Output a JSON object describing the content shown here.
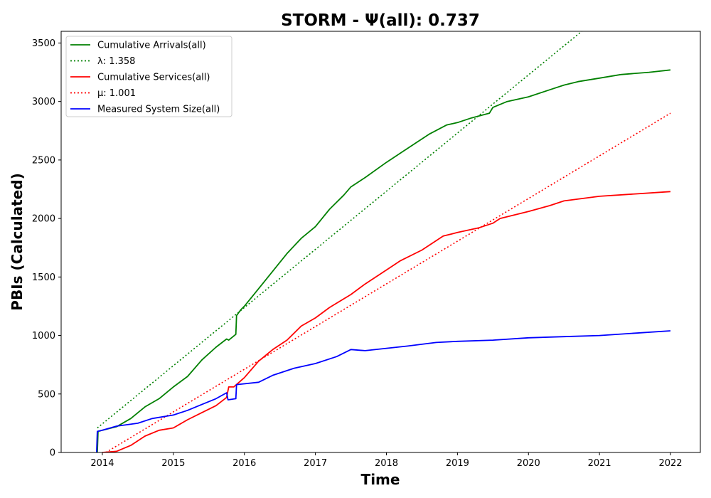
{
  "chart_data": {
    "type": "line",
    "title": "STORM -  Ψ(all): 0.737",
    "xlabel": "Time",
    "ylabel": "PBIs (Calculated)",
    "xlim": [
      2013.42,
      2022.42
    ],
    "ylim": [
      0,
      3600
    ],
    "x_ticks": [
      2014,
      2015,
      2016,
      2017,
      2018,
      2019,
      2020,
      2021,
      2022
    ],
    "y_ticks": [
      0,
      500,
      1000,
      1500,
      2000,
      2500,
      3000,
      3500
    ],
    "grid": false,
    "legend_position": "top-left",
    "series": [
      {
        "name": "Cumulative Arrivals(all)",
        "color": "#008000",
        "style": "solid",
        "points": [
          [
            2013.93,
            0
          ],
          [
            2013.94,
            180
          ],
          [
            2014.0,
            190
          ],
          [
            2014.2,
            220
          ],
          [
            2014.4,
            290
          ],
          [
            2014.6,
            390
          ],
          [
            2014.8,
            460
          ],
          [
            2015.0,
            560
          ],
          [
            2015.2,
            650
          ],
          [
            2015.4,
            790
          ],
          [
            2015.6,
            900
          ],
          [
            2015.75,
            970
          ],
          [
            2015.78,
            960
          ],
          [
            2015.88,
            1010
          ],
          [
            2015.89,
            1170
          ],
          [
            2015.95,
            1220
          ],
          [
            2016.0,
            1250
          ],
          [
            2016.2,
            1400
          ],
          [
            2016.4,
            1550
          ],
          [
            2016.6,
            1700
          ],
          [
            2016.8,
            1830
          ],
          [
            2017.0,
            1930
          ],
          [
            2017.2,
            2080
          ],
          [
            2017.4,
            2200
          ],
          [
            2017.5,
            2270
          ],
          [
            2017.7,
            2350
          ],
          [
            2018.0,
            2480
          ],
          [
            2018.2,
            2560
          ],
          [
            2018.4,
            2640
          ],
          [
            2018.6,
            2720
          ],
          [
            2018.85,
            2800
          ],
          [
            2019.0,
            2820
          ],
          [
            2019.2,
            2860
          ],
          [
            2019.45,
            2900
          ],
          [
            2019.5,
            2950
          ],
          [
            2019.7,
            3000
          ],
          [
            2020.0,
            3040
          ],
          [
            2020.3,
            3100
          ],
          [
            2020.5,
            3140
          ],
          [
            2020.7,
            3170
          ],
          [
            2021.0,
            3200
          ],
          [
            2021.3,
            3230
          ],
          [
            2021.7,
            3250
          ],
          [
            2022.0,
            3270
          ]
        ]
      },
      {
        "name": "λ: 1.358",
        "color": "#008000",
        "style": "dotted",
        "points": [
          [
            2013.93,
            210
          ],
          [
            2020.75,
            3600
          ]
        ]
      },
      {
        "name": "Cumulative Services(all)",
        "color": "#ff0000",
        "style": "solid",
        "points": [
          [
            2014.0,
            0
          ],
          [
            2014.2,
            10
          ],
          [
            2014.4,
            60
          ],
          [
            2014.6,
            140
          ],
          [
            2014.8,
            190
          ],
          [
            2015.0,
            210
          ],
          [
            2015.2,
            280
          ],
          [
            2015.4,
            340
          ],
          [
            2015.6,
            400
          ],
          [
            2015.75,
            470
          ],
          [
            2015.78,
            560
          ],
          [
            2015.85,
            560
          ],
          [
            2016.0,
            640
          ],
          [
            2016.2,
            780
          ],
          [
            2016.4,
            880
          ],
          [
            2016.6,
            960
          ],
          [
            2016.8,
            1080
          ],
          [
            2017.0,
            1150
          ],
          [
            2017.2,
            1240
          ],
          [
            2017.5,
            1350
          ],
          [
            2017.7,
            1440
          ],
          [
            2018.0,
            1560
          ],
          [
            2018.2,
            1640
          ],
          [
            2018.5,
            1730
          ],
          [
            2018.8,
            1850
          ],
          [
            2019.0,
            1880
          ],
          [
            2019.3,
            1920
          ],
          [
            2019.5,
            1960
          ],
          [
            2019.6,
            2000
          ],
          [
            2020.0,
            2060
          ],
          [
            2020.3,
            2110
          ],
          [
            2020.5,
            2150
          ],
          [
            2021.0,
            2190
          ],
          [
            2021.5,
            2210
          ],
          [
            2022.0,
            2230
          ]
        ]
      },
      {
        "name": "μ: 1.001",
        "color": "#ff0000",
        "style": "dotted",
        "points": [
          [
            2014.05,
            0
          ],
          [
            2022.0,
            2900
          ]
        ]
      },
      {
        "name": "Measured System Size(all)",
        "color": "#0000ff",
        "style": "solid",
        "points": [
          [
            2013.92,
            0
          ],
          [
            2013.93,
            180
          ],
          [
            2014.0,
            190
          ],
          [
            2014.2,
            225
          ],
          [
            2014.5,
            250
          ],
          [
            2014.7,
            290
          ],
          [
            2015.0,
            320
          ],
          [
            2015.2,
            360
          ],
          [
            2015.4,
            410
          ],
          [
            2015.6,
            460
          ],
          [
            2015.75,
            510
          ],
          [
            2015.77,
            450
          ],
          [
            2015.88,
            460
          ],
          [
            2015.89,
            580
          ],
          [
            2016.2,
            600
          ],
          [
            2016.4,
            660
          ],
          [
            2016.7,
            720
          ],
          [
            2017.0,
            760
          ],
          [
            2017.3,
            820
          ],
          [
            2017.5,
            880
          ],
          [
            2017.7,
            870
          ],
          [
            2018.0,
            890
          ],
          [
            2018.3,
            910
          ],
          [
            2018.7,
            940
          ],
          [
            2019.0,
            950
          ],
          [
            2019.5,
            960
          ],
          [
            2020.0,
            980
          ],
          [
            2020.5,
            990
          ],
          [
            2021.0,
            1000
          ],
          [
            2021.5,
            1020
          ],
          [
            2022.0,
            1040
          ]
        ]
      }
    ]
  }
}
